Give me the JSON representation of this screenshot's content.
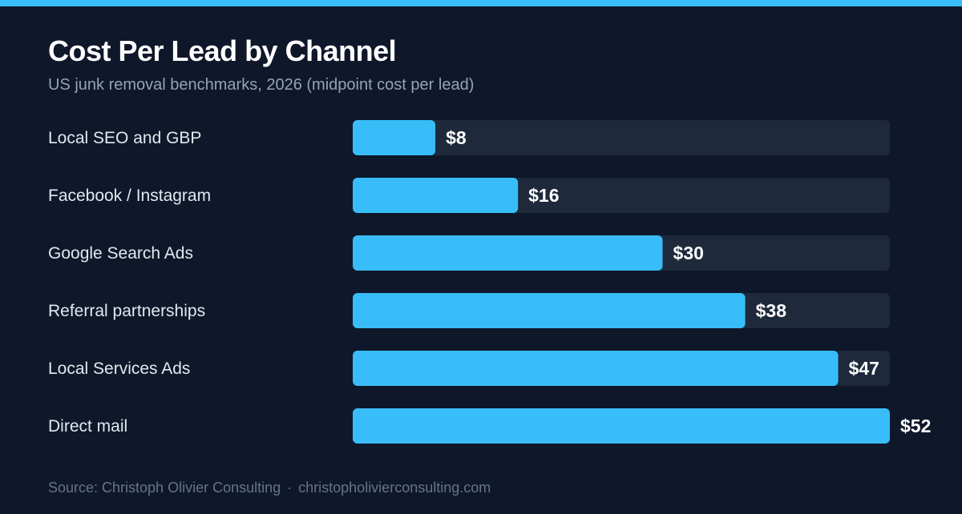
{
  "title": "Cost Per Lead by Channel",
  "subtitle": "US junk removal benchmarks, 2026 (midpoint cost per lead)",
  "footer": {
    "source": "Source: Christoph Olivier Consulting",
    "separator": "·",
    "website": "christopholivierconsulting.com"
  },
  "colors": {
    "background": "#0f172a",
    "accent": "#38bdf8",
    "track": "#1e293b",
    "label": "#e2e8f0",
    "value": "#ffffff",
    "muted": "#94a3b8"
  },
  "chart_data": {
    "type": "bar",
    "orientation": "horizontal",
    "categories": [
      "Local SEO and GBP",
      "Facebook / Instagram",
      "Google Search Ads",
      "Referral partnerships",
      "Local Services Ads",
      "Direct mail"
    ],
    "values": [
      8,
      16,
      30,
      38,
      47,
      52
    ],
    "value_labels": [
      "$8",
      "$16",
      "$30",
      "$38",
      "$47",
      "$52"
    ],
    "xlim": [
      0,
      52
    ],
    "grid": false,
    "legend": "none"
  }
}
